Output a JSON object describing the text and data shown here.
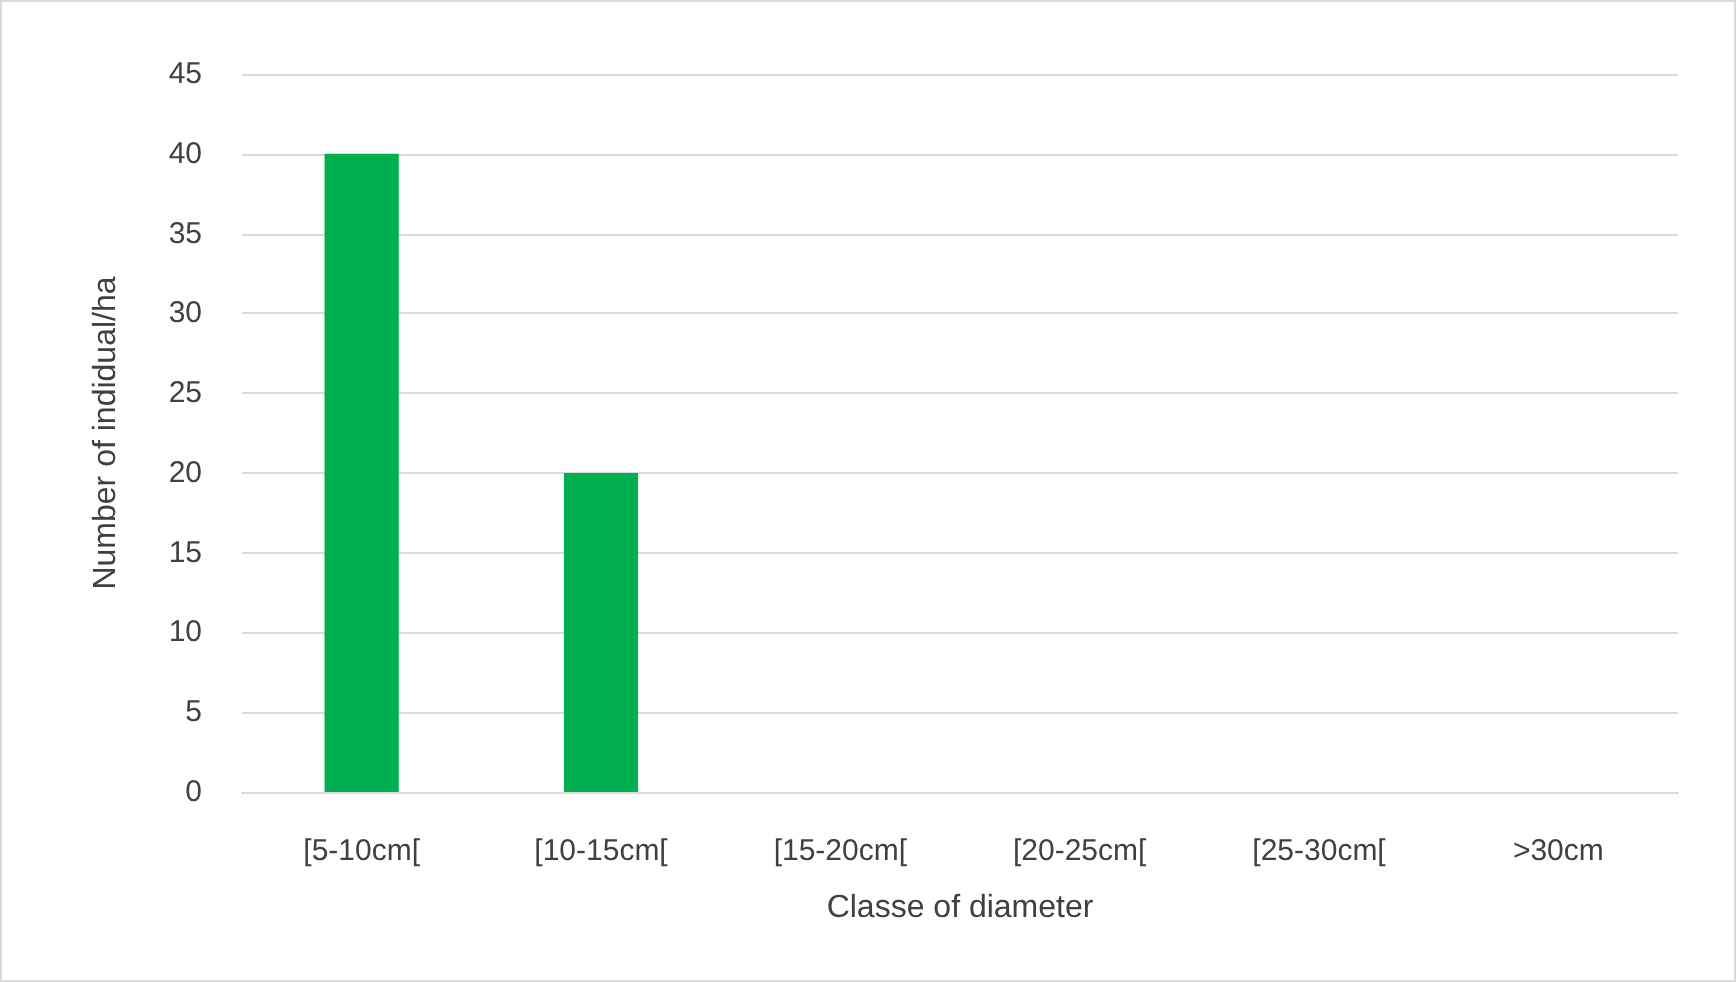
{
  "chart_data": {
    "type": "bar",
    "xlabel": "Classe of diameter",
    "ylabel": "Number of indidual/ha",
    "categories": [
      "[5-10cm[",
      "[10-15cm[",
      "[15-20cm[",
      "[20-25cm[",
      "[25-30cm[",
      ">30cm"
    ],
    "values": [
      40,
      20,
      0,
      0,
      0,
      0
    ],
    "color": "#00b050",
    "ylim": [
      0,
      45
    ],
    "yticks": [
      0,
      5,
      10,
      15,
      20,
      25,
      30,
      35,
      40,
      45
    ],
    "grid": "y"
  }
}
